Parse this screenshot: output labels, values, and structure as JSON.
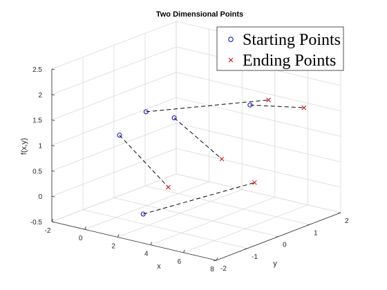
{
  "chart_data": {
    "type": "scatter",
    "title": "Two Dimensional Points",
    "xlabel": "x",
    "ylabel": "y",
    "zlabel": "f(x,y)",
    "xlim": [
      -2,
      8
    ],
    "ylim": [
      -2,
      2
    ],
    "zlim": [
      -0.5,
      2.5
    ],
    "xticks": [
      "-2",
      "0",
      "2",
      "4",
      "6",
      "8"
    ],
    "yticks": [
      "-2",
      "-1",
      "0",
      "1",
      "2"
    ],
    "zticks": [
      "-0.5",
      "0",
      "0.5",
      "1",
      "1.5",
      "2",
      "2.5"
    ],
    "grid": true,
    "legend_position": "top-right",
    "series": [
      {
        "name": "Starting Points",
        "marker": "circle",
        "color": "#0000cc"
      },
      {
        "name": "Ending Points",
        "marker": "x",
        "color": "#cc0000"
      }
    ],
    "pairs": [
      {
        "start": [
          -1.0,
          0.5,
          1.15
        ],
        "end": [
          7.2,
          0.1,
          2.1
        ]
      },
      {
        "start": [
          -1.1,
          -0.3,
          0.87
        ],
        "end": [
          3.0,
          -0.9,
          0.3
        ]
      },
      {
        "start": [
          0.9,
          0.4,
          1.2
        ],
        "end": [
          5.5,
          -0.5,
          0.95
        ]
      },
      {
        "start": [
          4.0,
          1.2,
          1.5
        ],
        "end": [
          6.9,
          1.4,
          1.62
        ]
      },
      {
        "start": [
          2.8,
          -1.6,
          -0.08
        ],
        "end": [
          7.3,
          -0.4,
          0.6
        ]
      }
    ]
  }
}
